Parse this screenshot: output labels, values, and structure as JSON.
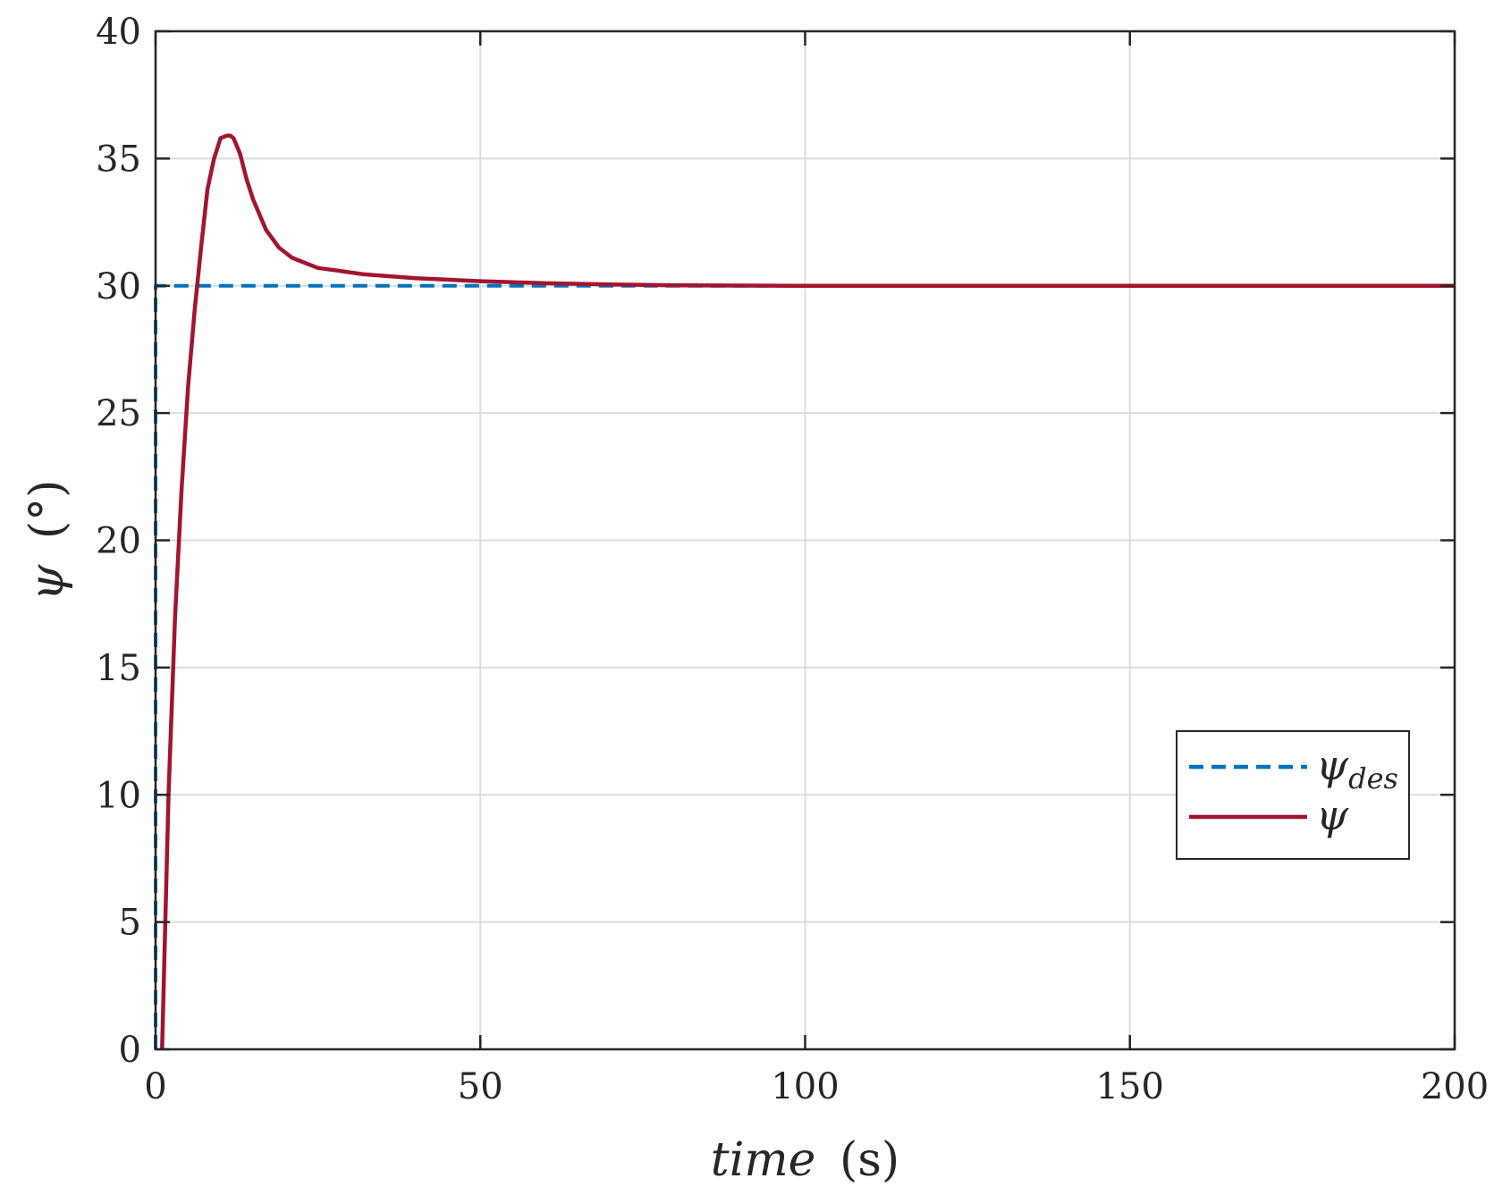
{
  "chart_data": {
    "type": "line",
    "xlabel_var": "time",
    "xlabel_unit": "(s)",
    "ylabel_var": "ψ",
    "ylabel_unit": "(°)",
    "xlim": [
      0,
      200
    ],
    "ylim": [
      0,
      40
    ],
    "xticks": [
      0,
      50,
      100,
      150,
      200
    ],
    "yticks": [
      0,
      5,
      10,
      15,
      20,
      25,
      30,
      35,
      40
    ],
    "grid": true,
    "legend_position": "lower-right",
    "series": [
      {
        "name": "ψ",
        "name_subscript": "des",
        "color": "#0072BD",
        "style": "dashed",
        "x": [
          0,
          0,
          200
        ],
        "y": [
          0,
          30,
          30
        ]
      },
      {
        "name": "ψ",
        "name_subscript": "",
        "color": "#A2142F",
        "style": "solid",
        "x": [
          1,
          1.5,
          2,
          3,
          4,
          5,
          6,
          7,
          8,
          9,
          10,
          11,
          11.5,
          12,
          13,
          14,
          15,
          17,
          19,
          21,
          23,
          25,
          28,
          32,
          40,
          50,
          60,
          70,
          80,
          90,
          100,
          150,
          200
        ],
        "y": [
          0,
          5,
          10,
          17,
          22,
          26,
          29,
          31.5,
          33.8,
          35,
          35.8,
          35.9,
          35.9,
          35.8,
          35.2,
          34.2,
          33.4,
          32.2,
          31.5,
          31.1,
          30.9,
          30.7,
          30.6,
          30.45,
          30.3,
          30.18,
          30.1,
          30.05,
          30.02,
          30.01,
          30,
          30,
          30
        ]
      }
    ]
  }
}
